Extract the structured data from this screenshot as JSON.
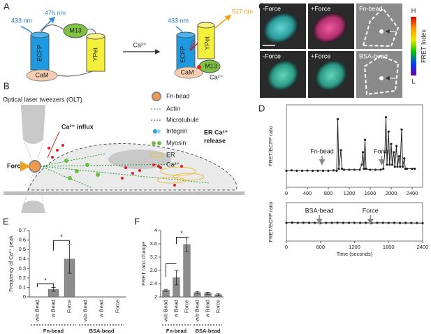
{
  "panel_labels": [
    "A",
    "B",
    "C",
    "D",
    "E",
    "F"
  ],
  "panel_a": {
    "excitation_left": "433 nm",
    "emission_left": "476 nm",
    "m13_left": "M13",
    "ecfp_left": "ECFP",
    "ypet_left": "YPet",
    "cam_left": "CaM",
    "transition": "Ca²⁺",
    "excitation_right": "433 nm",
    "emission_right": "527 nm",
    "fret": "FRET",
    "ecfp_right": "ECFP",
    "ypet_right": "YPet",
    "m13_right": "M13",
    "cam_right": "CaM",
    "calcium_right": "Ca²⁺"
  },
  "panel_b": {
    "title": "Optical laser tweezers (OLT)",
    "force": "Force",
    "influx": "Ca²⁺ influx",
    "release_1": "ER Ca²⁺",
    "release_2": "release",
    "legend": [
      "Fn-bead",
      "Actin",
      "Microtubule",
      "Integrin",
      "Myosin",
      "ER",
      "Ca²⁺"
    ]
  },
  "panel_c": {
    "labels": [
      "-Force",
      "+Force",
      "Fn-bead",
      "-Force",
      "+Force",
      "BSA-bead"
    ],
    "colorbar": {
      "high": "H",
      "title": "FRET Index",
      "low": "L"
    }
  },
  "chart_data": [
    {
      "type": "line",
      "ylabel": "FRET/ECFP ratio",
      "color": "#222222",
      "x": [
        0,
        100,
        200,
        300,
        400,
        500,
        600,
        700,
        800,
        900,
        960,
        980,
        1000,
        1040,
        1060,
        1100,
        1200,
        1300,
        1400,
        1440,
        1460,
        1480,
        1500,
        1520,
        1600,
        1700,
        1800,
        1850,
        1880,
        1900,
        1920,
        1950,
        1970,
        2000,
        2020,
        2050,
        2070,
        2100,
        2120,
        2150,
        2170,
        2200,
        2220,
        2250,
        2270,
        2300,
        2400,
        2450
      ],
      "values": [
        2.3,
        2.32,
        2.3,
        2.3,
        2.31,
        2.3,
        2.3,
        2.3,
        2.3,
        2.32,
        2.3,
        4.8,
        2.4,
        3.3,
        2.4,
        2.35,
        2.35,
        2.35,
        2.35,
        2.6,
        3.2,
        2.4,
        3.8,
        2.4,
        2.35,
        2.35,
        2.35,
        2.4,
        3.2,
        4.9,
        2.6,
        4.2,
        2.6,
        3.6,
        2.6,
        3.2,
        2.5,
        3.5,
        2.5,
        3.0,
        2.5,
        4.3,
        2.5,
        2.9,
        2.4,
        2.4,
        2.4,
        2.4
      ],
      "xlim": [
        0,
        2600
      ],
      "xticks": [
        0,
        400,
        800,
        1200,
        1600,
        2000,
        2400
      ],
      "ylim": [
        1.5,
        5.5
      ],
      "annotations": [
        {
          "label": "Fn-bead",
          "x": 680
        },
        {
          "label": "Force",
          "x": 1820
        }
      ]
    },
    {
      "type": "line",
      "ylabel": "FRET/ECFP ratio",
      "xlabel": "Time (seconds)",
      "color": "#222222",
      "x": [
        0,
        100,
        200,
        300,
        400,
        500,
        600,
        700,
        800,
        900,
        1000,
        1100,
        1200,
        1300,
        1400,
        1500,
        1600,
        1700,
        1800,
        1900,
        2000,
        2100,
        2200,
        2300,
        2400
      ],
      "values": [
        1.9,
        1.92,
        1.9,
        1.91,
        1.9,
        1.9,
        1.88,
        1.9,
        1.9,
        1.91,
        1.9,
        1.9,
        1.9,
        1.89,
        1.9,
        1.88,
        1.9,
        1.9,
        1.89,
        1.9,
        1.88,
        1.89,
        1.88,
        1.88,
        1.87
      ],
      "xlim": [
        0,
        2400
      ],
      "xticks": [
        0,
        600,
        1200,
        1800,
        2400
      ],
      "ylim": [
        0,
        4
      ],
      "annotations": [
        {
          "label": "BSA-bead",
          "x": 580
        },
        {
          "label": "Force",
          "x": 1480
        }
      ]
    },
    {
      "type": "bar",
      "ylabel": "Frequency of Ca²⁺ peak",
      "color": "#8c8c8c",
      "categories": [
        "w/o Bead",
        "w Bead",
        "Force",
        "w/o Bead",
        "w Bead",
        "Force"
      ],
      "values": [
        0,
        0.08,
        0.4,
        0,
        0,
        0
      ],
      "errors": [
        null,
        0.02,
        0.15,
        null,
        null,
        null
      ],
      "ylim": [
        0,
        0.7
      ],
      "yticks": [
        0,
        0.1,
        0.2,
        0.3,
        0.4,
        0.5,
        0.6,
        0.7
      ],
      "groups": [
        "Fn-bead",
        "BSA-bead"
      ],
      "significance": [
        "*",
        "*"
      ]
    },
    {
      "type": "bar",
      "ylabel": "FRET ratio change",
      "color": "#8c8c8c",
      "categories": [
        "w/o Bead",
        "w Bead",
        "Force",
        "w/o Bead",
        "w Bead",
        "Force"
      ],
      "values": [
        2.2,
        2.58,
        3.58,
        2.13,
        2.11,
        2.07
      ],
      "errors": [
        0.03,
        0.22,
        0.22,
        0.03,
        0.03,
        0.03
      ],
      "ylim": [
        2,
        4
      ],
      "yticks": [
        2,
        2.4,
        2.8,
        3.2,
        3.6,
        4
      ],
      "groups": [
        "Fn-bead",
        "BSA-bead"
      ],
      "significance": [
        "*"
      ]
    }
  ]
}
